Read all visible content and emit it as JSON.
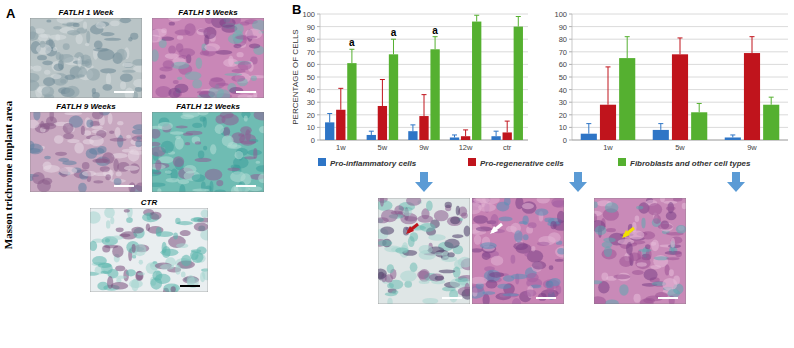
{
  "panel_a": {
    "label": "A",
    "title": "Masson trichrome implant area",
    "images": [
      "FATLH 1 Week",
      "FATLH 5 Weeks",
      "FATLH 9 Weeks",
      "FATLH 12 Weeks",
      "CTR"
    ]
  },
  "panel_b": {
    "label": "B"
  },
  "chart_data": [
    {
      "type": "bar",
      "y_label": "PERCENTAGE OF CELLS",
      "categories": [
        "1w",
        "5w",
        "9w",
        "12w",
        "ctr"
      ],
      "ylim": [
        0,
        100
      ],
      "yticks": [
        0,
        10,
        20,
        30,
        40,
        50,
        60,
        70,
        80,
        90,
        100
      ],
      "grid": true,
      "legend": "bottom",
      "series": [
        {
          "name": "Pro-inflammatory cells",
          "color": "#2e75c6",
          "values": [
            14,
            4,
            7,
            2,
            3
          ],
          "errors": [
            7,
            3,
            5,
            2,
            4
          ]
        },
        {
          "name": "Pro-regenerative cells",
          "color": "#c0141c",
          "values": [
            24,
            27,
            19,
            3,
            6
          ],
          "errors": [
            17,
            21,
            17,
            5,
            9
          ]
        },
        {
          "name": "Fibroblasts and other cell types",
          "color": "#55b030",
          "values": [
            61,
            68,
            72,
            94,
            90
          ],
          "errors": [
            11,
            12,
            10,
            5,
            8
          ]
        }
      ],
      "annotations": [
        {
          "category": 0,
          "series": 2,
          "text": "a"
        },
        {
          "category": 1,
          "series": 2,
          "text": "a"
        },
        {
          "category": 2,
          "series": 2,
          "text": "a"
        }
      ]
    },
    {
      "type": "bar",
      "categories": [
        "1w",
        "5w",
        "9w"
      ],
      "ylim": [
        0,
        100
      ],
      "yticks": [
        0,
        10,
        20,
        30,
        40,
        50,
        60,
        70,
        80,
        90,
        100
      ],
      "grid": true,
      "series": [
        {
          "color": "#2e75c6",
          "values": [
            5,
            8,
            2
          ],
          "errors": [
            8,
            5,
            2
          ]
        },
        {
          "color": "#c0141c",
          "values": [
            28,
            68,
            69
          ],
          "errors": [
            30,
            13,
            13
          ]
        },
        {
          "color": "#55b030",
          "values": [
            65,
            22,
            28
          ],
          "errors": [
            17,
            7,
            6
          ]
        }
      ]
    }
  ]
}
